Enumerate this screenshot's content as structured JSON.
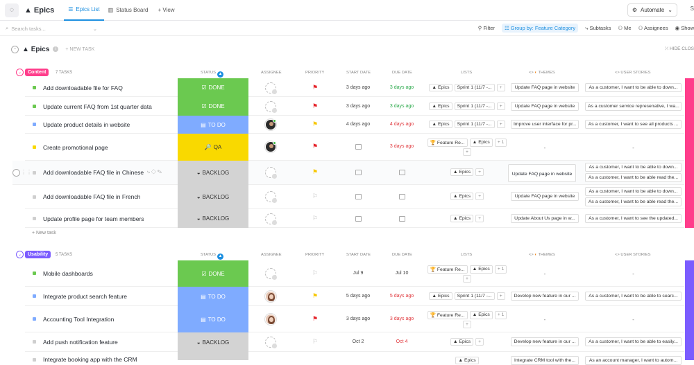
{
  "app": {
    "title": "Epics"
  },
  "views": [
    {
      "label": "Epics List"
    },
    {
      "label": "Status Board"
    }
  ],
  "add_view": "+ View",
  "automate": "Automate",
  "share": "S",
  "toolbar": {
    "search_placeholder": "Search tasks...",
    "filter": "Filter",
    "group_by": "Group by: Feature Category",
    "subtasks": "Subtasks",
    "me": "Me",
    "assignees": "Assignees",
    "show": "Show"
  },
  "list": {
    "title": "Epics",
    "new_task": "+ NEW TASK",
    "hide_closed": "HIDE CLOS"
  },
  "columns": {
    "status": "STATUS",
    "assignee": "ASSIGNEE",
    "priority": "PRIORITY",
    "start_date": "START DATE",
    "due_date": "DUE DATE",
    "lists": "LISTS",
    "themes": "THEMES",
    "user_stories": "USER STORIES"
  },
  "groups": [
    {
      "name": "Content",
      "count": "7 TASKS",
      "color": "#ff3d8b",
      "new_task": "+ New task",
      "tasks": [
        {
          "name": "Add downloadable file for FAQ",
          "status": "DONE",
          "start": "3 days ago",
          "due": "3 days ago",
          "lists": [
            "Epics",
            "Sprint 1 (11/7 -..."
          ],
          "themes": [
            "Update FAQ page in website"
          ],
          "stories": [
            "As a customer, I want to be able to down..."
          ]
        },
        {
          "name": "Update current FAQ from 1st quarter data",
          "status": "DONE",
          "start": "3 days ago",
          "due": "3 days ago",
          "lists": [
            "Epics",
            "Sprint 1 (11/7 -..."
          ],
          "themes": [
            "Update FAQ page in website"
          ],
          "stories": [
            "As a customer service represenative, I wa..."
          ]
        },
        {
          "name": "Update product details in website",
          "status": "TO DO",
          "start": "4 days ago",
          "due": "4 days ago",
          "lists": [
            "Epics",
            "Sprint 1 (11/7 -..."
          ],
          "themes": [
            "Improve user interface for pr..."
          ],
          "stories": [
            "As a customer, I want to see all products ..."
          ]
        },
        {
          "name": "Create promotional page",
          "status": "QA",
          "start": "",
          "due": "3 days ago",
          "lists": [
            "Feature Re...",
            "Epics",
            "+ 1"
          ],
          "themes": [
            "-"
          ],
          "stories": [
            "-"
          ]
        },
        {
          "name": "Add downloadable FAQ file in Chinese",
          "status": "BACKLOG",
          "start": "",
          "due": "",
          "lists": [
            "Epics"
          ],
          "themes": [
            "Update FAQ page in website"
          ],
          "stories": [
            "As a customer, I want to be able to down...",
            "As a customer, I want to be able read the..."
          ]
        },
        {
          "name": "Add downloadable FAQ file in French",
          "status": "BACKLOG",
          "start": "",
          "due": "",
          "lists": [
            "Epics"
          ],
          "themes": [
            "Update FAQ page in website"
          ],
          "stories": [
            "As a customer, I want to be able to down...",
            "As a customer, I want to be able read the..."
          ]
        },
        {
          "name": "Update profile page for team members",
          "status": "BACKLOG",
          "start": "",
          "due": "",
          "lists": [
            "Epics"
          ],
          "themes": [
            "Update About Us page in w..."
          ],
          "stories": [
            "As a customer, I want to see the updated..."
          ]
        }
      ]
    },
    {
      "name": "Usability",
      "count": "5 TASKS",
      "color": "#7b5cff",
      "tasks": [
        {
          "name": "Mobile dashboards",
          "status": "DONE",
          "start": "Jul 9",
          "due": "Jul 10",
          "lists": [
            "Feature Re...",
            "Epics",
            "+ 1"
          ],
          "themes": [
            "-"
          ],
          "stories": [
            "-"
          ]
        },
        {
          "name": "Integrate product search feature",
          "status": "TO DO",
          "start": "5 days ago",
          "due": "5 days ago",
          "lists": [
            "Epics",
            "Sprint 1 (11/7 -..."
          ],
          "themes": [
            "Develop new feature in our ..."
          ],
          "stories": [
            "As a customer, I want to be able to searc..."
          ]
        },
        {
          "name": "Accounting Tool Integration",
          "status": "TO DO",
          "start": "3 days ago",
          "due": "3 days ago",
          "lists": [
            "Feature Re...",
            "Epics",
            "+ 1"
          ],
          "themes": [
            "-"
          ],
          "stories": [
            "-"
          ]
        },
        {
          "name": "Add push notification feature",
          "status": "BACKLOG",
          "start": "Oct 2",
          "due": "Oct 4",
          "lists": [
            "Epics"
          ],
          "themes": [
            "Develop new feature in our ..."
          ],
          "stories": [
            "As a customer, I want to be able to easily..."
          ]
        },
        {
          "name": "Integrate booking app with the CRM",
          "status": "",
          "start": "",
          "due": "",
          "lists": [
            "Epics"
          ],
          "themes": [
            "Integrate CRM tool with the..."
          ],
          "stories": [
            "As an account manager, I want to autom..."
          ]
        }
      ]
    }
  ],
  "colors": {
    "done": "#6bc950",
    "todo": "#7fabff",
    "qa": "#f9d900",
    "backlog": "#d3d3d3",
    "flag_red": "#e5232a",
    "flag_yellow": "#f7c700"
  }
}
